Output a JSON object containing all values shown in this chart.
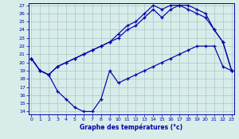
{
  "bg_color": "#d8ecea",
  "line_color": "#0000aa",
  "grid_color": "#a8c8c4",
  "xlabel": "Graphe des températures (°c)",
  "xlim": [
    0,
    23
  ],
  "ylim": [
    14,
    27
  ],
  "yticks": [
    14,
    15,
    16,
    17,
    18,
    19,
    20,
    21,
    22,
    23,
    24,
    25,
    26,
    27
  ],
  "xticks": [
    0,
    1,
    2,
    3,
    4,
    5,
    6,
    7,
    8,
    9,
    10,
    11,
    12,
    13,
    14,
    15,
    16,
    17,
    18,
    19,
    20,
    21,
    22,
    23
  ],
  "s1_x": [
    0,
    1,
    2,
    3,
    4,
    5,
    6,
    7,
    8,
    9,
    10,
    11,
    12,
    13,
    14,
    15,
    16,
    17,
    18,
    19,
    20,
    21,
    22,
    23
  ],
  "s1_y": [
    20.5,
    19.0,
    18.5,
    16.5,
    15.5,
    14.5,
    14.0,
    14.0,
    15.5,
    19.0,
    17.5,
    18.0,
    18.5,
    19.0,
    19.5,
    20.0,
    20.5,
    21.0,
    21.5,
    22.0,
    22.0,
    22.0,
    19.5,
    19.0
  ],
  "s2_x": [
    0,
    1,
    2,
    3,
    4,
    5,
    6,
    7,
    8,
    9,
    10,
    11,
    12,
    13,
    14,
    15,
    16,
    17,
    18,
    19,
    20,
    21,
    22,
    23
  ],
  "s2_y": [
    20.5,
    19.0,
    18.5,
    19.5,
    20.0,
    20.5,
    21.0,
    21.5,
    22.0,
    22.5,
    23.5,
    24.5,
    25.0,
    26.0,
    27.0,
    26.5,
    27.0,
    27.0,
    26.5,
    26.0,
    25.5,
    24.0,
    22.5,
    19.0
  ],
  "s3_x": [
    0,
    1,
    2,
    3,
    4,
    5,
    6,
    7,
    8,
    9,
    10,
    11,
    12,
    13,
    14,
    15,
    16,
    17,
    18,
    19,
    20,
    21,
    22,
    23
  ],
  "s3_y": [
    20.5,
    19.0,
    18.5,
    19.5,
    20.0,
    20.5,
    21.0,
    21.5,
    22.0,
    22.5,
    23.0,
    24.0,
    24.5,
    25.5,
    26.5,
    25.5,
    26.5,
    27.0,
    27.0,
    26.5,
    26.0,
    24.0,
    22.5,
    19.0
  ]
}
